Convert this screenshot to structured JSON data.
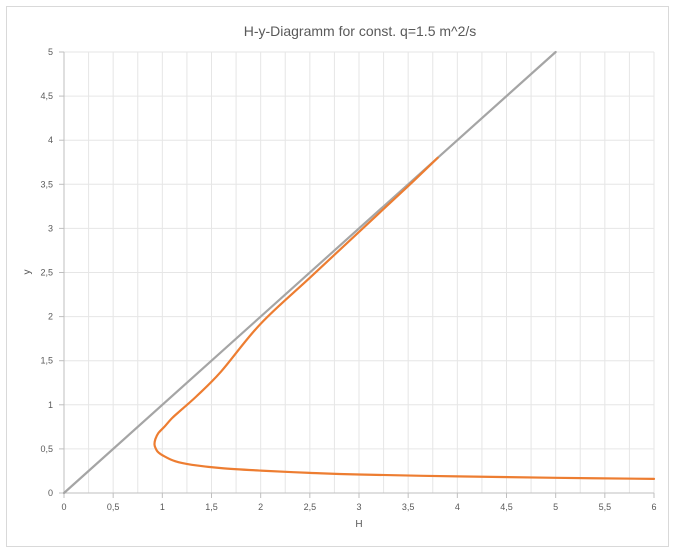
{
  "chart_data": {
    "type": "line",
    "title": "H-y-Diagramm for const. q=1.5 m^2/s",
    "xlabel": "H",
    "ylabel": "y",
    "xlim": [
      0,
      6
    ],
    "ylim": [
      0,
      5
    ],
    "x_ticks": [
      "0",
      "0,5",
      "1",
      "1,5",
      "2",
      "2,5",
      "3",
      "3,5",
      "4",
      "4,5",
      "5",
      "5,5",
      "6"
    ],
    "y_ticks": [
      "0",
      "0,5",
      "1",
      "1,5",
      "2",
      "2,5",
      "3",
      "3,5",
      "4",
      "4,5",
      "5"
    ],
    "grid": true,
    "colors": {
      "energy_curve": "#ed7d31",
      "reference_line": "#a5a5a5",
      "grid": "#e6e6e6",
      "axis": "#bfbfbf"
    },
    "series": [
      {
        "color": "#ed7d31",
        "points": [
          [
            6.0,
            0.16
          ],
          [
            5.0,
            0.172
          ],
          [
            4.0,
            0.188
          ],
          [
            3.0,
            0.21
          ],
          [
            2.5,
            0.228
          ],
          [
            2.0,
            0.254
          ],
          [
            1.6,
            0.282
          ],
          [
            1.3,
            0.32
          ],
          [
            1.13,
            0.36
          ],
          [
            1.03,
            0.41
          ],
          [
            0.96,
            0.46
          ],
          [
            0.935,
            0.5
          ],
          [
            0.92,
            0.55
          ],
          [
            0.93,
            0.612
          ],
          [
            0.96,
            0.68
          ],
          [
            1.02,
            0.75
          ],
          [
            1.1,
            0.85
          ],
          [
            1.2,
            0.95
          ],
          [
            1.35,
            1.1
          ],
          [
            1.6,
            1.38
          ],
          [
            2.0,
            1.92
          ],
          [
            2.5,
            2.44
          ],
          [
            3.0,
            2.96
          ],
          [
            3.5,
            3.48
          ],
          [
            3.8,
            3.8
          ]
        ]
      },
      {
        "color": "#a5a5a5",
        "points": [
          [
            0,
            0
          ],
          [
            5,
            5
          ]
        ]
      }
    ]
  }
}
